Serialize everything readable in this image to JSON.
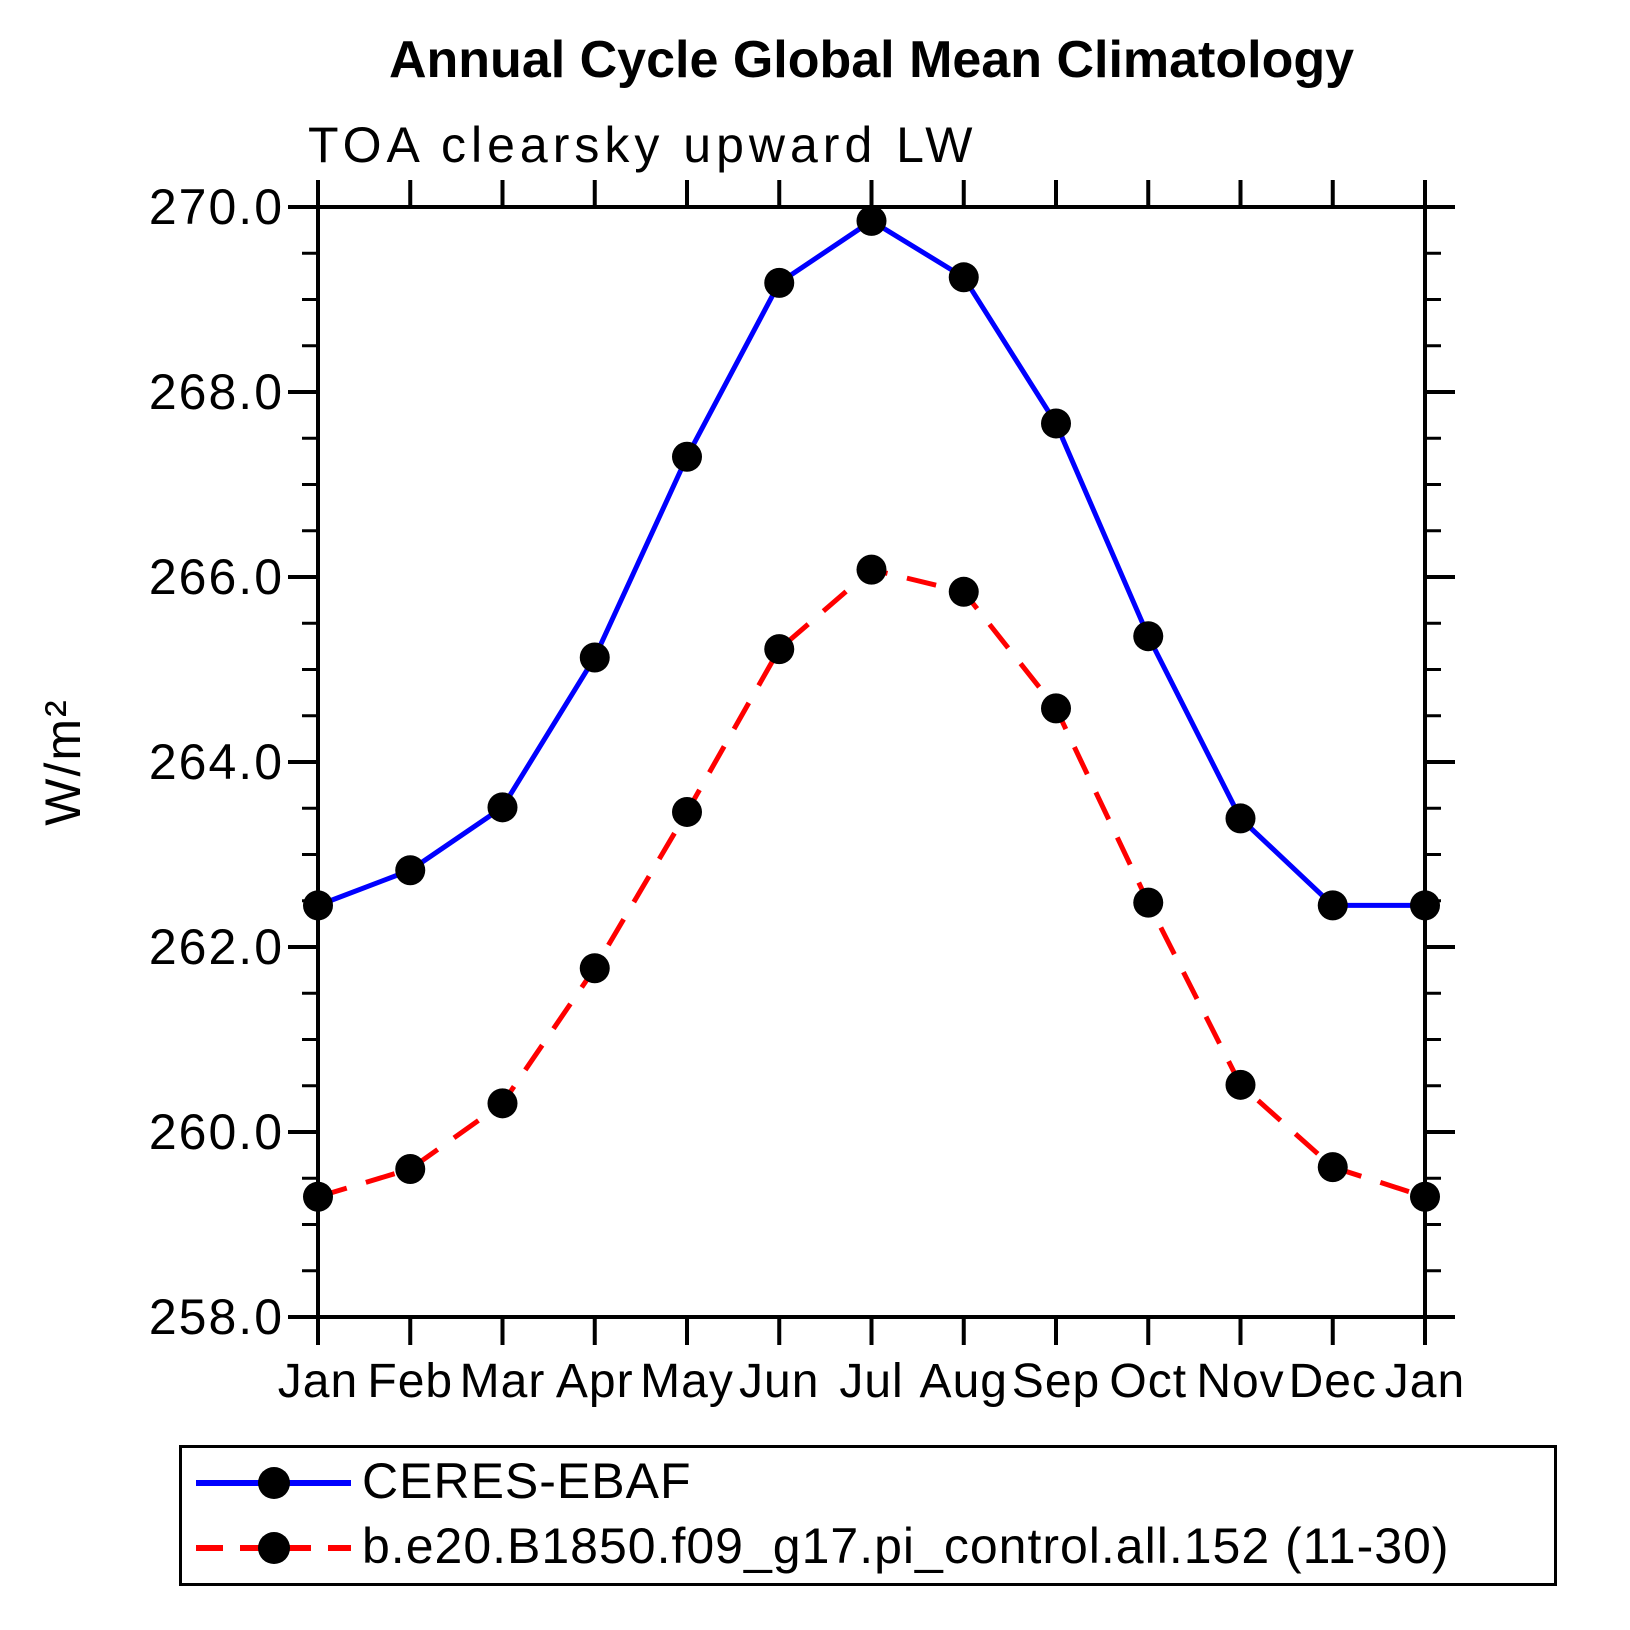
{
  "chart_data": {
    "type": "line",
    "title": "Annual Cycle Global Mean Climatology",
    "subtitle": "TOA clearsky upward LW",
    "ylabel": "W/m²",
    "xlabel": "",
    "categories": [
      "Jan",
      "Feb",
      "Mar",
      "Apr",
      "May",
      "Jun",
      "Jul",
      "Aug",
      "Sep",
      "Oct",
      "Nov",
      "Dec",
      "Jan"
    ],
    "ylim": [
      258.0,
      270.0
    ],
    "ytick_step": 2.0,
    "ytick_minor_step": 0.5,
    "ytick_labels": [
      "258.0",
      "260.0",
      "262.0",
      "264.0",
      "266.0",
      "268.0",
      "270.0"
    ],
    "grid": "off",
    "legend_position": "bottom",
    "series": [
      {
        "name": "CERES-EBAF",
        "color": "#0000ff",
        "line_style": "solid",
        "marker": "circle",
        "marker_color": "#000000",
        "values": [
          262.45,
          262.83,
          263.51,
          265.13,
          267.3,
          269.18,
          269.85,
          269.24,
          267.66,
          265.36,
          263.39,
          262.45,
          262.45
        ]
      },
      {
        "name": "b.e20.B1850.f09_g17.pi_control.all.152 (11-30)",
        "color": "#ff0000",
        "line_style": "dashed",
        "marker": "circle",
        "marker_color": "#000000",
        "values": [
          259.3,
          259.6,
          260.31,
          261.77,
          263.46,
          265.22,
          266.08,
          265.84,
          264.58,
          262.48,
          260.51,
          259.62,
          259.3
        ]
      }
    ]
  },
  "colors": {
    "axis": "#000000",
    "text": "#000000",
    "background": "#ffffff"
  }
}
